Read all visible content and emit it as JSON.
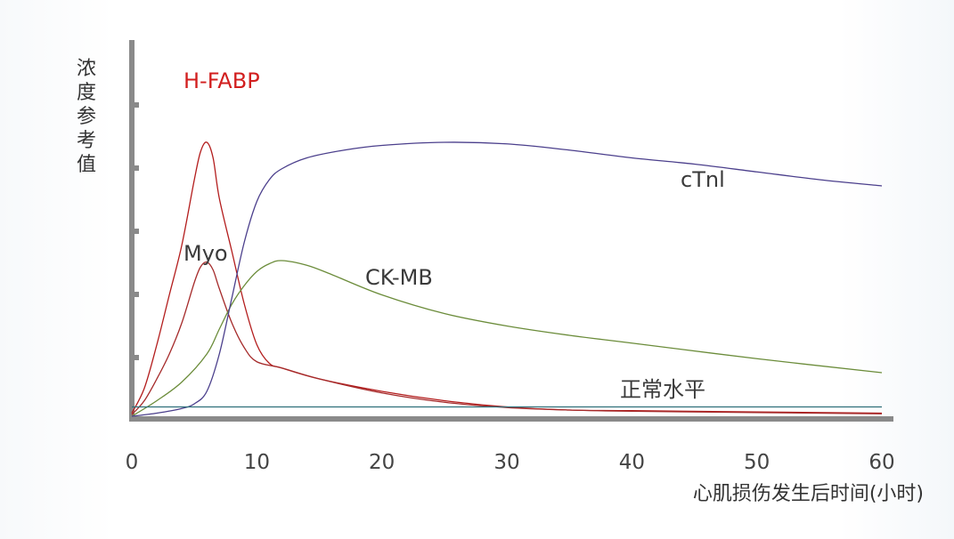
{
  "chart_data": {
    "type": "line",
    "ylabel": "浓度参考值",
    "xlabel": "心肌损伤发生后时间(小时)",
    "xlim": [
      0,
      60
    ],
    "ylim": [
      0,
      10
    ],
    "x_ticks": [
      0,
      10,
      20,
      30,
      40,
      50,
      60
    ],
    "x_tick_labels": [
      "0",
      "10",
      "20",
      "30",
      "40",
      "50",
      "60"
    ],
    "y_ticks_labeled": false,
    "grid": false,
    "series": [
      {
        "name": "H-FABP",
        "color": "#b31d1d",
        "label_color": "#d21f1f",
        "points": [
          [
            0,
            0.1
          ],
          [
            1,
            0.9
          ],
          [
            2,
            2.3
          ],
          [
            3,
            3.9
          ],
          [
            4,
            5.5
          ],
          [
            5,
            7.6
          ],
          [
            5.5,
            8.5
          ],
          [
            6,
            8.8
          ],
          [
            6.5,
            8.3
          ],
          [
            7,
            7.0
          ],
          [
            8,
            5.3
          ],
          [
            9,
            3.6
          ],
          [
            10,
            2.3
          ],
          [
            11,
            1.7
          ],
          [
            12,
            1.55
          ],
          [
            15,
            1.2
          ],
          [
            20,
            0.8
          ],
          [
            25,
            0.5
          ],
          [
            30,
            0.3
          ],
          [
            35,
            0.2
          ],
          [
            40,
            0.18
          ],
          [
            50,
            0.14
          ],
          [
            60,
            0.1
          ]
        ]
      },
      {
        "name": "Myo",
        "color": "#a52a2a",
        "label_color": "#3a3a3a",
        "points": [
          [
            0,
            0.05
          ],
          [
            1,
            0.5
          ],
          [
            2,
            1.2
          ],
          [
            3,
            2.0
          ],
          [
            4,
            3.0
          ],
          [
            5,
            4.3
          ],
          [
            5.5,
            4.8
          ],
          [
            6,
            4.95
          ],
          [
            6.5,
            4.7
          ],
          [
            7,
            4.1
          ],
          [
            8,
            3.0
          ],
          [
            9,
            2.2
          ],
          [
            10,
            1.75
          ],
          [
            12,
            1.55
          ],
          [
            15,
            1.2
          ],
          [
            20,
            0.75
          ],
          [
            25,
            0.45
          ],
          [
            30,
            0.28
          ],
          [
            35,
            0.2
          ],
          [
            40,
            0.16
          ],
          [
            50,
            0.12
          ],
          [
            60,
            0.08
          ]
        ]
      },
      {
        "name": "CK-MB",
        "color": "#6b8c3a",
        "label_color": "#3a3a3a",
        "points": [
          [
            0,
            0.0
          ],
          [
            2,
            0.5
          ],
          [
            4,
            1.1
          ],
          [
            6,
            2.0
          ],
          [
            7,
            2.8
          ],
          [
            8,
            3.6
          ],
          [
            9,
            4.2
          ],
          [
            10,
            4.65
          ],
          [
            11,
            4.9
          ],
          [
            12,
            5.0
          ],
          [
            14,
            4.85
          ],
          [
            16,
            4.55
          ],
          [
            20,
            3.9
          ],
          [
            25,
            3.3
          ],
          [
            30,
            2.9
          ],
          [
            35,
            2.6
          ],
          [
            40,
            2.35
          ],
          [
            50,
            1.85
          ],
          [
            60,
            1.4
          ]
        ]
      },
      {
        "name": "cTnl",
        "color": "#4b3f8c",
        "label_color": "#3a3a3a",
        "points": [
          [
            0,
            0.0
          ],
          [
            2,
            0.1
          ],
          [
            4,
            0.25
          ],
          [
            5,
            0.4
          ],
          [
            6,
            0.8
          ],
          [
            7,
            2.0
          ],
          [
            8,
            3.8
          ],
          [
            9,
            5.6
          ],
          [
            10,
            6.9
          ],
          [
            11,
            7.6
          ],
          [
            12,
            7.95
          ],
          [
            14,
            8.3
          ],
          [
            17,
            8.55
          ],
          [
            20,
            8.7
          ],
          [
            25,
            8.8
          ],
          [
            30,
            8.75
          ],
          [
            35,
            8.55
          ],
          [
            40,
            8.3
          ],
          [
            45,
            8.1
          ],
          [
            50,
            7.85
          ],
          [
            55,
            7.6
          ],
          [
            60,
            7.4
          ]
        ]
      },
      {
        "name": "正常水平",
        "color": "#2f6f7a",
        "label_color": "#3a3a3a",
        "points": [
          [
            0,
            0.3
          ],
          [
            60,
            0.3
          ]
        ]
      }
    ]
  }
}
